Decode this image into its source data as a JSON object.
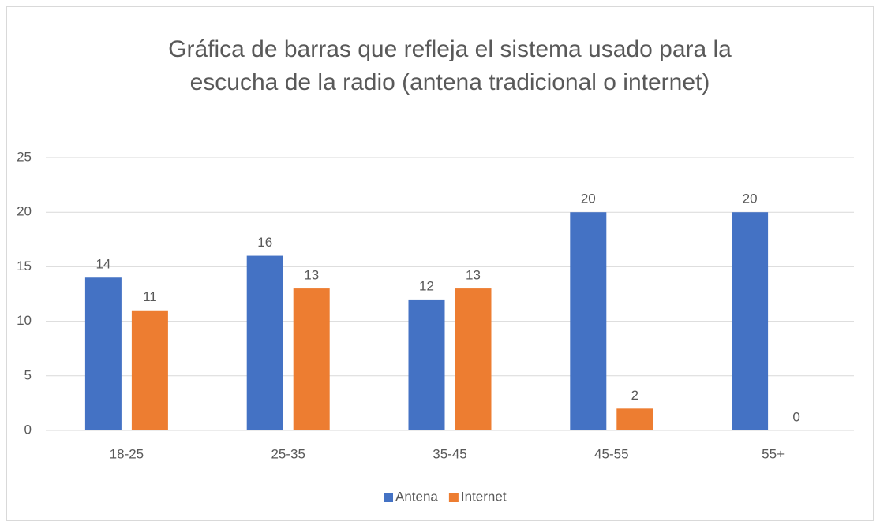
{
  "chart_data": {
    "type": "bar",
    "title": [
      "Gráfica de barras que refleja el sistema usado para la",
      "escucha de la radio (antena tradicional o internet)"
    ],
    "categories": [
      "18-25",
      "25-35",
      "35-45",
      "45-55",
      "55+"
    ],
    "series": [
      {
        "name": "Antena",
        "color": "#4472c4",
        "values": [
          14,
          16,
          12,
          20,
          20
        ]
      },
      {
        "name": "Internet",
        "color": "#ed7d31",
        "values": [
          11,
          13,
          13,
          2,
          0
        ]
      }
    ],
    "ylim": [
      0,
      25
    ],
    "yticks": [
      0,
      5,
      10,
      15,
      20,
      25
    ],
    "grid": true,
    "legend": "bottom"
  }
}
